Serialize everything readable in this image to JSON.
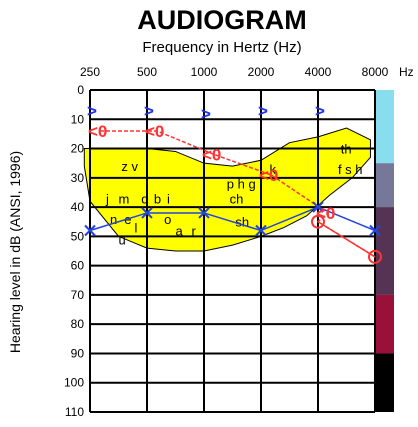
{
  "chart_data": {
    "type": "line",
    "title": "AUDIOGRAM",
    "xlabel": "Frequency in Hertz (Hz)",
    "ylabel": "Hearing level in dB (ANSI, 1996)",
    "x_unit": "Hz",
    "x_categories": [
      "250",
      "500",
      "1000",
      "2000",
      "4000",
      "8000"
    ],
    "y_ticks": [
      0,
      10,
      20,
      30,
      40,
      50,
      60,
      70,
      80,
      90,
      100,
      110
    ],
    "ylim": [
      0,
      110
    ],
    "y_inverted": true,
    "grid": true,
    "colors": {
      "series_left_ear": "#ff3333",
      "series_right_ear": "#2244dd",
      "bone_conduction": "#2233ee",
      "speech_banana": "#ffff00",
      "band_1": "#88ddee",
      "band_2": "#777799",
      "band_3": "#553355",
      "band_4": "#99113a",
      "band_5": "#000000"
    },
    "severity_bands": [
      {
        "from": 0,
        "to": 25,
        "color": "#88ddee"
      },
      {
        "from": 25,
        "to": 40,
        "color": "#777799"
      },
      {
        "from": 40,
        "to": 70,
        "color": "#553355"
      },
      {
        "from": 70,
        "to": 90,
        "color": "#99113a"
      },
      {
        "from": 90,
        "to": 110,
        "color": "#000000"
      }
    ],
    "series": [
      {
        "symbol": "X",
        "color": "#2244dd",
        "values": [
          48,
          42,
          42,
          48,
          40,
          48
        ]
      },
      {
        "symbol": "O",
        "color": "#ff3333",
        "values": [
          null,
          null,
          null,
          null,
          45,
          57
        ]
      }
    ],
    "unmasked_left_markers": [
      {
        "x_index": 0,
        "y": 14,
        "symbol": "<0"
      },
      {
        "x_index": 1,
        "y": 14,
        "symbol": "<0"
      },
      {
        "x_index": 2,
        "y": 22,
        "symbol": "<0"
      },
      {
        "x_index": 3,
        "y": 29,
        "symbol": "<0"
      },
      {
        "x_index": 4,
        "y": 42,
        "symbol": "<0"
      }
    ],
    "bone_markers": [
      {
        "x_index": 0,
        "y": 7,
        "symbol": ">"
      },
      {
        "x_index": 1,
        "y": 7,
        "symbol": ">"
      },
      {
        "x_index": 2,
        "y": 8,
        "symbol": ">"
      },
      {
        "x_index": 3,
        "y": 7,
        "symbol": ">"
      },
      {
        "x_index": 4,
        "y": 7,
        "symbol": ">"
      }
    ],
    "speech_sounds": [
      {
        "text": "z v",
        "x": 0.55,
        "y": 26
      },
      {
        "text": "j",
        "x": 0.28,
        "y": 37
      },
      {
        "text": "m",
        "x": 0.5,
        "y": 37
      },
      {
        "text": "d",
        "x": 0.9,
        "y": 37
      },
      {
        "text": "b",
        "x": 1.12,
        "y": 37
      },
      {
        "text": "i",
        "x": 1.35,
        "y": 37
      },
      {
        "text": "n",
        "x": 0.35,
        "y": 44
      },
      {
        "text": "e",
        "x": 0.6,
        "y": 44
      },
      {
        "text": "l",
        "x": 0.78,
        "y": 47
      },
      {
        "text": "u",
        "x": 0.5,
        "y": 51
      },
      {
        "text": "o",
        "x": 1.3,
        "y": 44
      },
      {
        "text": "a",
        "x": 1.5,
        "y": 48
      },
      {
        "text": "r",
        "x": 1.78,
        "y": 48
      },
      {
        "text": "p h g",
        "x": 2.4,
        "y": 32
      },
      {
        "text": "ch",
        "x": 2.45,
        "y": 37
      },
      {
        "text": "sh",
        "x": 2.55,
        "y": 45
      },
      {
        "text": "k",
        "x": 3.15,
        "y": 27
      },
      {
        "text": "th",
        "x": 4.4,
        "y": 20
      },
      {
        "text": "f s h",
        "x": 4.35,
        "y": 27
      }
    ]
  }
}
